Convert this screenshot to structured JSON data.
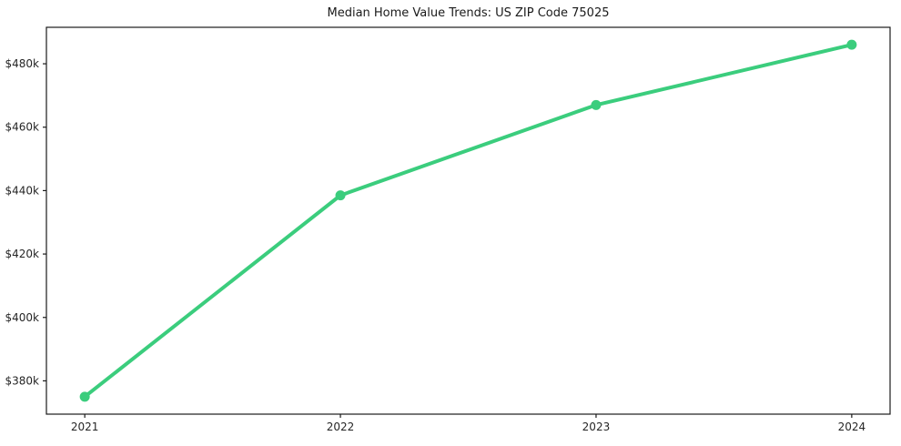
{
  "figure": {
    "background": "#ffffff"
  },
  "chart_data": {
    "type": "line",
    "title": "Median Home Value Trends: US ZIP Code 75025",
    "x": [
      2021,
      2022,
      2023,
      2024
    ],
    "x_tick_labels": [
      "2021",
      "2022",
      "2023",
      "2024"
    ],
    "series": [
      {
        "name": "Median Home Value",
        "values": [
          375000,
          438500,
          467000,
          486000
        ]
      }
    ],
    "y_ticks": [
      380000,
      400000,
      420000,
      440000,
      460000,
      480000
    ],
    "y_tick_labels": [
      "$380k",
      "$400k",
      "$420k",
      "$440k",
      "$460k",
      "$480k"
    ],
    "xlim": [
      2020.85,
      2024.15
    ],
    "ylim": [
      369500,
      491500
    ],
    "grid": false,
    "legend": "none",
    "line_color": "#3bcd7d",
    "marker": "circle",
    "marker_color": "#3bcd7d",
    "axis_color": "#1a1a1a",
    "tick_label_color": "#262626"
  }
}
